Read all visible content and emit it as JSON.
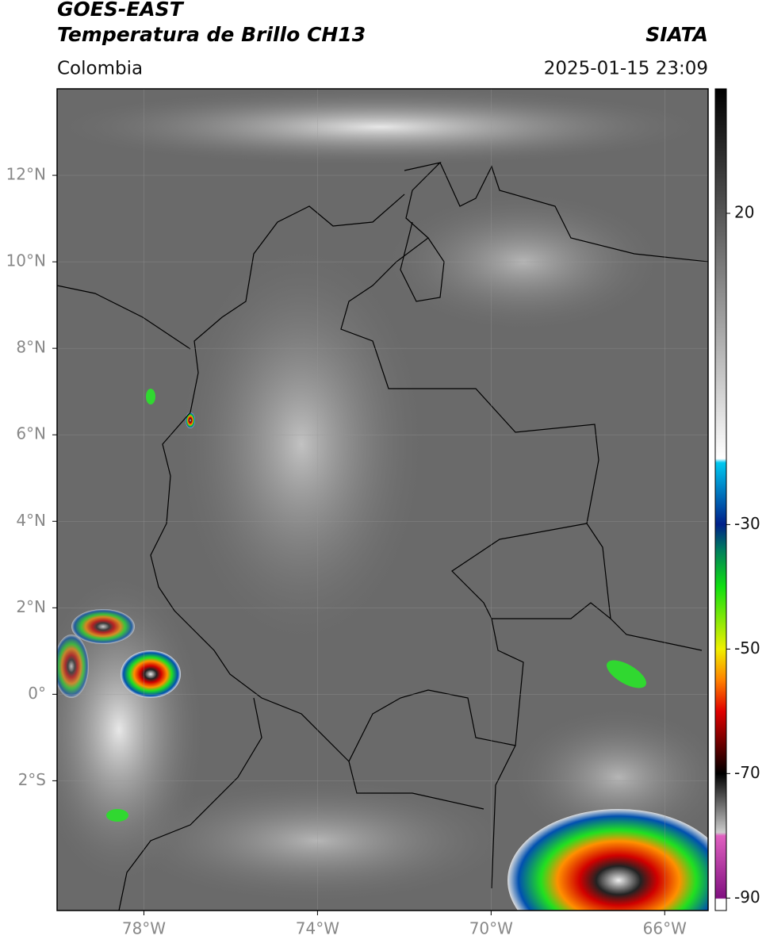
{
  "header": {
    "title": "GOES-EAST",
    "subtitle": "Temperatura de Brillo CH13",
    "source": "SIATA",
    "region": "Colombia",
    "datetime": "2025-01-15 23:09"
  },
  "map": {
    "xlim": [
      -80,
      -65
    ],
    "ylim": [
      -5,
      14
    ],
    "grid": true,
    "xticks": [
      {
        "value": -78,
        "label": "78°W"
      },
      {
        "value": -74,
        "label": "74°W"
      },
      {
        "value": -70,
        "label": "70°W"
      },
      {
        "value": -66,
        "label": "66°W"
      }
    ],
    "yticks": [
      {
        "value": 12,
        "label": "12°N"
      },
      {
        "value": 10,
        "label": "10°N"
      },
      {
        "value": 8,
        "label": "8°N"
      },
      {
        "value": 6,
        "label": "6°N"
      },
      {
        "value": 4,
        "label": "4°N"
      },
      {
        "value": 2,
        "label": "2°N"
      },
      {
        "value": 0,
        "label": "0°"
      },
      {
        "value": -2,
        "label": "2°S"
      }
    ]
  },
  "colorbar": {
    "lim": [
      -92,
      40
    ],
    "ticks": [
      20,
      -30,
      -50,
      -70,
      -90
    ]
  }
}
